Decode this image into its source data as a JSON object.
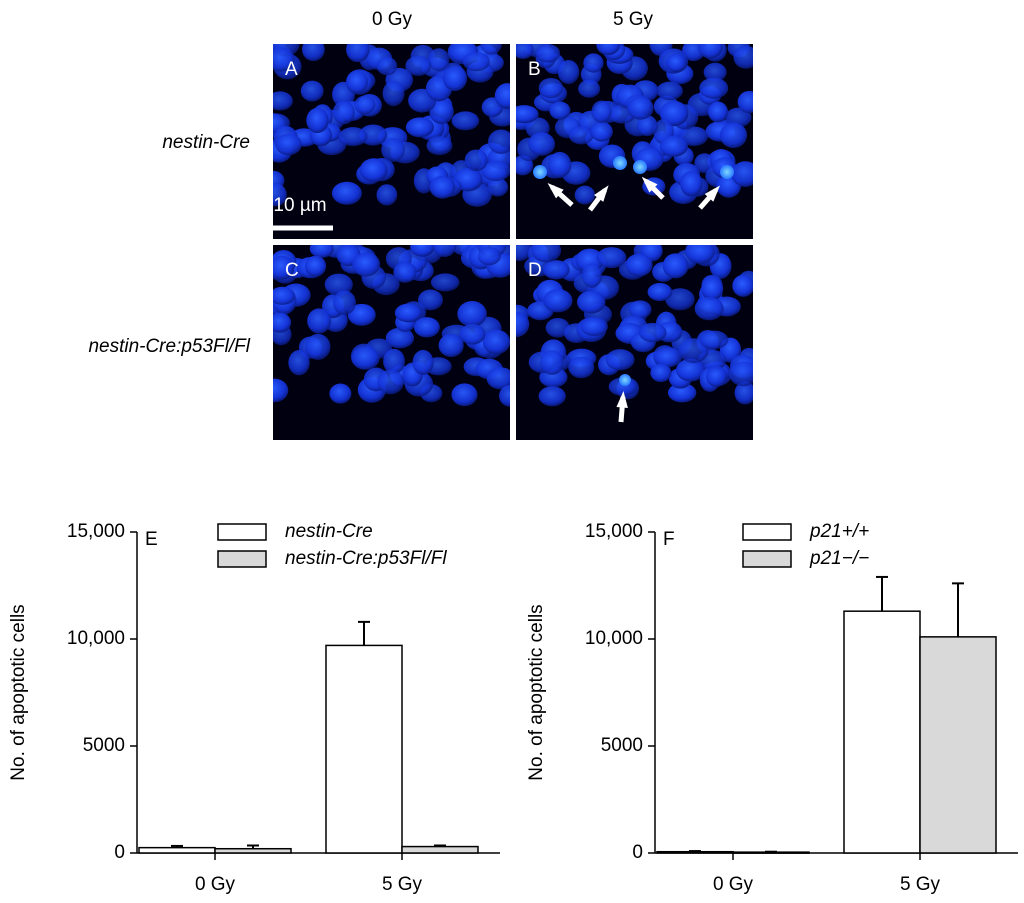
{
  "images": {
    "columns": [
      "0 Gy",
      "5 Gy"
    ],
    "rows": [
      "nestin-Cre",
      "nestin-Cre:p53Fl/Fl"
    ],
    "panels": [
      "A",
      "B",
      "C",
      "D"
    ],
    "scale_bar": "10 µm"
  },
  "chart_data": [
    {
      "type": "bar",
      "panel": "E",
      "ylabel": "No. of apoptotic cells",
      "categories": [
        "0 Gy",
        "5 Gy"
      ],
      "series": [
        {
          "name": "nestin-Cre",
          "color": "#ffffff",
          "values": [
            250,
            9700
          ],
          "errors": [
            80,
            1100
          ]
        },
        {
          "name": "nestin-Cre:p53Fl/Fl",
          "color": "#d9d9d9",
          "values": [
            200,
            300
          ],
          "errors": [
            150,
            50
          ]
        }
      ],
      "ylim": [
        0,
        15000
      ],
      "yticks": [
        0,
        5000,
        {
          "value": 10000,
          "label": "10,000"
        },
        {
          "value": 15000,
          "label": "15,000"
        }
      ],
      "legend": "upper center"
    },
    {
      "type": "bar",
      "panel": "F",
      "ylabel": "No. of apoptotic cells",
      "categories": [
        "0 Gy",
        "5 Gy"
      ],
      "series": [
        {
          "name": "p21+/+",
          "color": "#ffffff",
          "values": [
            60,
            11300
          ],
          "errors": [
            30,
            1600
          ]
        },
        {
          "name": "p21−/−",
          "color": "#d9d9d9",
          "values": [
            40,
            10100
          ],
          "errors": [
            20,
            2500
          ]
        }
      ],
      "ylim": [
        0,
        15000
      ],
      "yticks": [
        0,
        5000,
        {
          "value": 10000,
          "label": "10,000"
        },
        {
          "value": 15000,
          "label": "15,000"
        }
      ],
      "legend": "upper center"
    }
  ]
}
